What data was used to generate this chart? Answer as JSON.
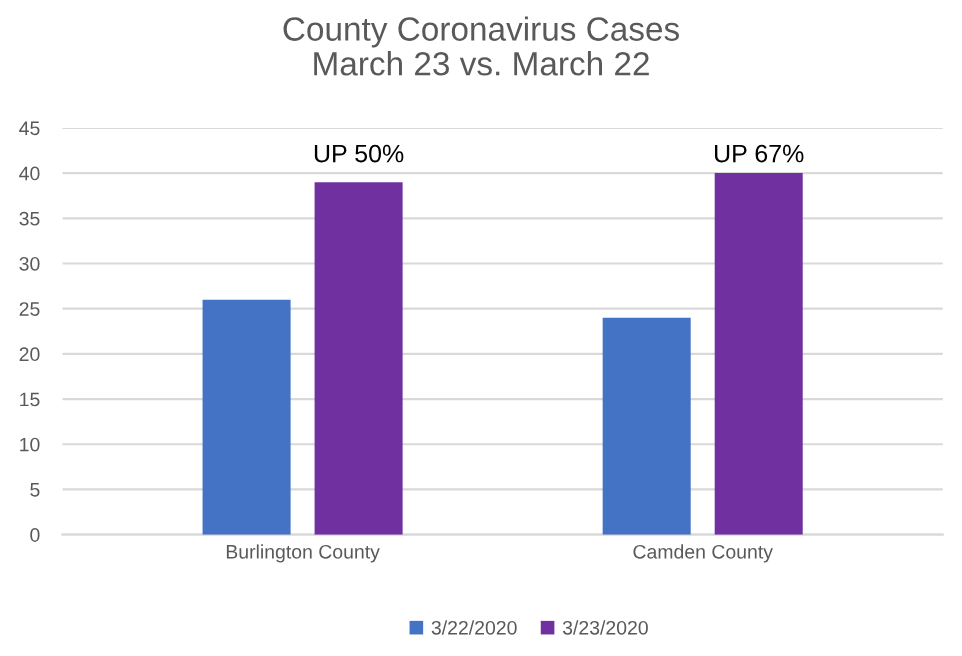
{
  "chart_data": {
    "type": "bar",
    "title": "County Coronavirus Cases\nMarch 23 vs. March 22",
    "categories": [
      "Burlington County",
      "Camden County"
    ],
    "series": [
      {
        "name": "3/22/2020",
        "color": "#4472c4",
        "values": [
          26,
          24
        ]
      },
      {
        "name": "3/23/2020",
        "color": "#7030a0",
        "values": [
          39,
          40
        ]
      }
    ],
    "annotations": [
      "UP 50%",
      "UP 67%"
    ],
    "ylim": [
      0,
      45
    ],
    "yticks": [
      0,
      5,
      10,
      15,
      20,
      25,
      30,
      35,
      40,
      45
    ],
    "grid": "y",
    "legend": "bottom"
  }
}
